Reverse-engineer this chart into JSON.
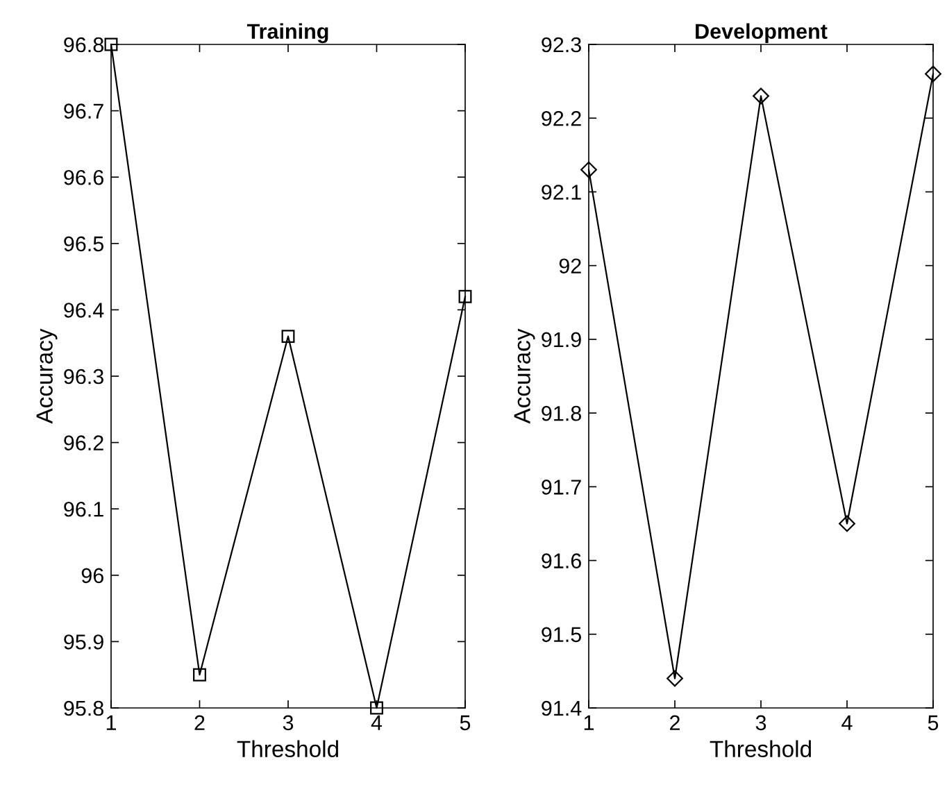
{
  "chart_data": [
    {
      "type": "line",
      "title": "Training",
      "xlabel": "Threshold",
      "ylabel": "Accuracy",
      "x": [
        1,
        2,
        3,
        4,
        5
      ],
      "marker": "square",
      "xlim": [
        1,
        5
      ],
      "xticks": [
        1,
        2,
        3,
        4,
        5
      ],
      "ylim": [
        95.8,
        96.8
      ],
      "yticks": [
        95.8,
        95.9,
        96,
        96.1,
        96.2,
        96.3,
        96.4,
        96.5,
        96.6,
        96.7,
        96.8
      ],
      "grid": false,
      "legend": false,
      "series": [
        {
          "color": "#000000",
          "values": [
            96.8,
            95.85,
            96.36,
            95.8,
            96.42
          ]
        }
      ]
    },
    {
      "type": "line",
      "title": "Development",
      "xlabel": "Threshold",
      "ylabel": "Accuracy",
      "x": [
        1,
        2,
        3,
        4,
        5
      ],
      "marker": "diamond",
      "xlim": [
        1,
        5
      ],
      "xticks": [
        1,
        2,
        3,
        4,
        5
      ],
      "ylim": [
        91.4,
        92.3
      ],
      "yticks": [
        91.4,
        91.5,
        91.6,
        91.7,
        91.8,
        91.9,
        92,
        92.1,
        92.2,
        92.3
      ],
      "grid": false,
      "legend": false,
      "series": [
        {
          "color": "#000000",
          "values": [
            92.13,
            91.44,
            92.23,
            91.65,
            92.26
          ]
        }
      ]
    }
  ]
}
